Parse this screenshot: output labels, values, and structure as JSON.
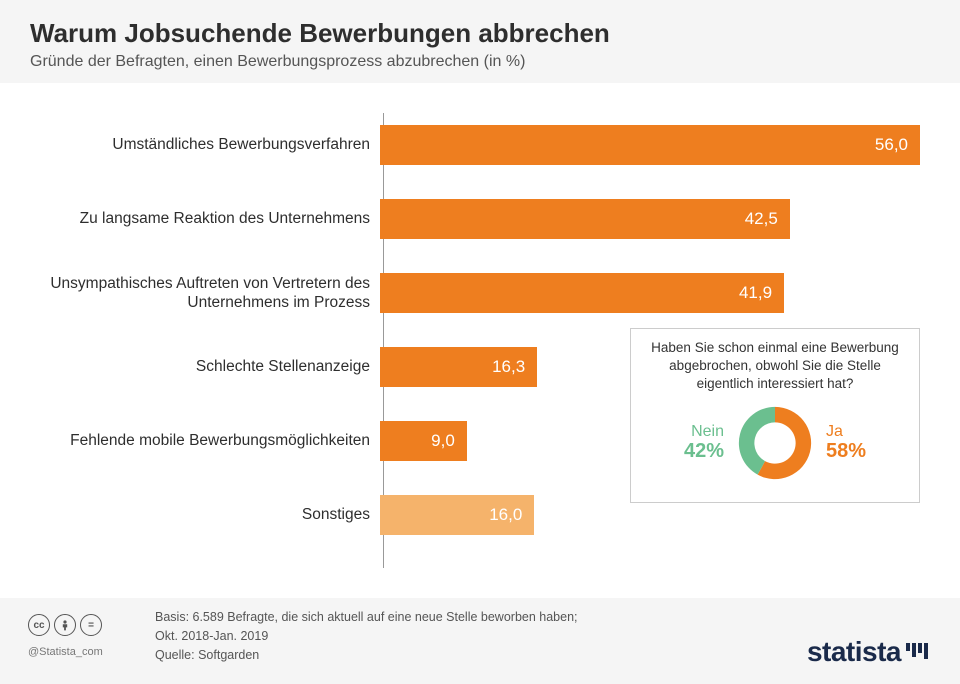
{
  "header": {
    "title": "Warum Jobsuchende Bewerbungen abbrechen",
    "subtitle": "Gründe der Befragten, einen Bewerbungsprozess abzubrechen (in %)"
  },
  "chart": {
    "type": "horizontal-bar",
    "bar_color": "#ee7e1f",
    "bar_color_alt": "#f5b36b",
    "max_value": 56.0,
    "value_fontsize": 17,
    "label_fontsize": 15.5,
    "bars": [
      {
        "label": "Umständliches Bewerbungsverfahren",
        "value": 56.0,
        "display": "56,0",
        "color": "#ee7e1f"
      },
      {
        "label": "Zu langsame Reaktion des Unternehmens",
        "value": 42.5,
        "display": "42,5",
        "color": "#ee7e1f"
      },
      {
        "label": "Unsympathisches Auftreten von Vertretern des Unternehmens im Prozess",
        "value": 41.9,
        "display": "41,9",
        "color": "#ee7e1f"
      },
      {
        "label": "Schlechte Stellenanzeige",
        "value": 16.3,
        "display": "16,3",
        "color": "#ee7e1f"
      },
      {
        "label": "Fehlende mobile Bewerbungsmöglichkeiten",
        "value": 9.0,
        "display": "9,0",
        "color": "#ee7e1f"
      },
      {
        "label": "Sonstiges",
        "value": 16.0,
        "display": "16,0",
        "color": "#f5b36b"
      }
    ]
  },
  "donut": {
    "title": "Haben Sie schon einmal eine Bewerbung abgebrochen, obwohl Sie die Stelle eigentlich interessiert hat?",
    "nein_label": "Nein",
    "nein_value": "42%",
    "nein_pct": 42,
    "nein_color": "#6bbf8f",
    "ja_label": "Ja",
    "ja_value": "58%",
    "ja_pct": 58,
    "ja_color": "#ee7e1f",
    "inner_color": "#ffffff",
    "start_angle_deg": -90
  },
  "footer": {
    "basis": "Basis: 6.589 Befragte, die sich aktuell auf eine neue Stelle beworben haben;",
    "period": "Okt. 2018-Jan. 2019",
    "source": "Quelle: Softgarden",
    "handle": "@Statista_com",
    "logo_text": "statista"
  },
  "colors": {
    "header_bg": "#f5f5f5",
    "text_primary": "#2e2e2e",
    "text_secondary": "#555555",
    "axis": "#999999",
    "logo": "#1a2a4a"
  }
}
